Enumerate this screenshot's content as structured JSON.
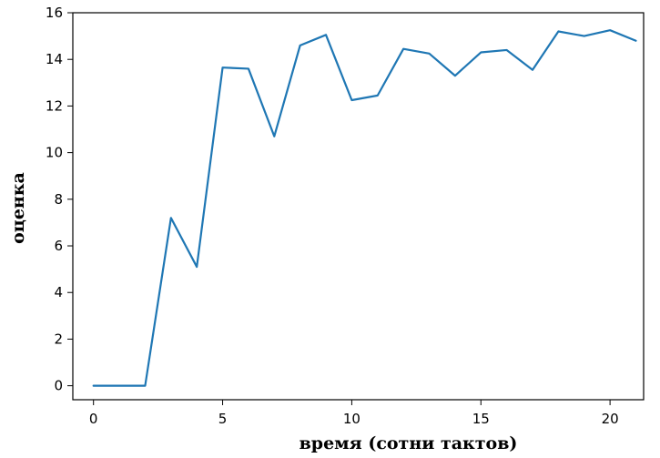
{
  "chart_data": {
    "type": "line",
    "title": "",
    "xlabel": "время (сотни тактов)",
    "ylabel": "оценка",
    "xlim": [
      -0.8,
      21.3
    ],
    "ylim": [
      -0.6,
      16
    ],
    "x_ticks": [
      0,
      5,
      10,
      15,
      20
    ],
    "y_ticks": [
      0,
      2,
      4,
      6,
      8,
      10,
      12,
      14,
      16
    ],
    "grid": false,
    "series": [
      {
        "color": "#1f77b4",
        "x": [
          0,
          1,
          2,
          3,
          4,
          5,
          6,
          7,
          8,
          9,
          10,
          11,
          12,
          13,
          14,
          15,
          16,
          17,
          18,
          19,
          20,
          21
        ],
        "y": [
          0,
          0,
          0,
          7.2,
          5.1,
          13.65,
          13.6,
          10.7,
          14.6,
          15.05,
          12.25,
          12.45,
          14.45,
          14.25,
          13.3,
          14.3,
          14.4,
          13.55,
          15.2,
          15,
          15.25,
          14.8
        ]
      }
    ]
  }
}
